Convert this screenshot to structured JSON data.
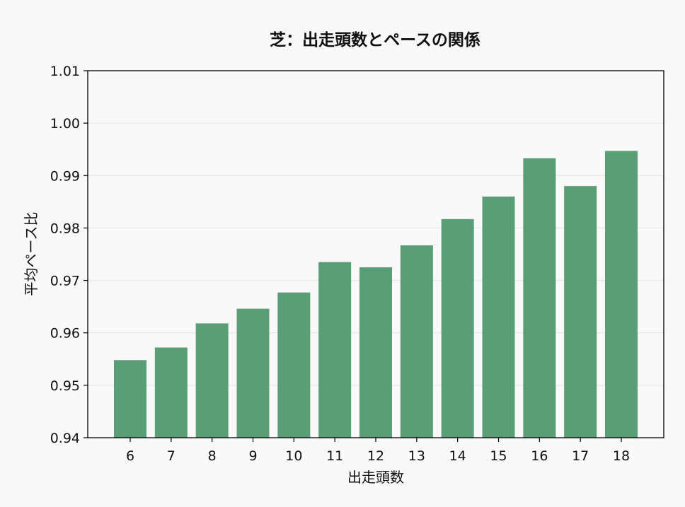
{
  "chart_data": {
    "type": "bar",
    "title": "芝：出走頭数とペースの関係",
    "xlabel": "出走頭数",
    "ylabel": "平均ペース比",
    "categories": [
      "6",
      "7",
      "8",
      "9",
      "10",
      "11",
      "12",
      "13",
      "14",
      "15",
      "16",
      "17",
      "18"
    ],
    "values": [
      0.9548,
      0.9572,
      0.9618,
      0.9646,
      0.9677,
      0.9735,
      0.9725,
      0.9767,
      0.9817,
      0.986,
      0.9933,
      0.988,
      0.9947
    ],
    "ylim": [
      0.94,
      1.01
    ],
    "yticks": [
      "0.94",
      "0.95",
      "0.96",
      "0.97",
      "0.98",
      "0.99",
      "1.00",
      "1.01"
    ],
    "grid": "horizontal",
    "bar_color": "#5a9e78",
    "legend": "none"
  }
}
